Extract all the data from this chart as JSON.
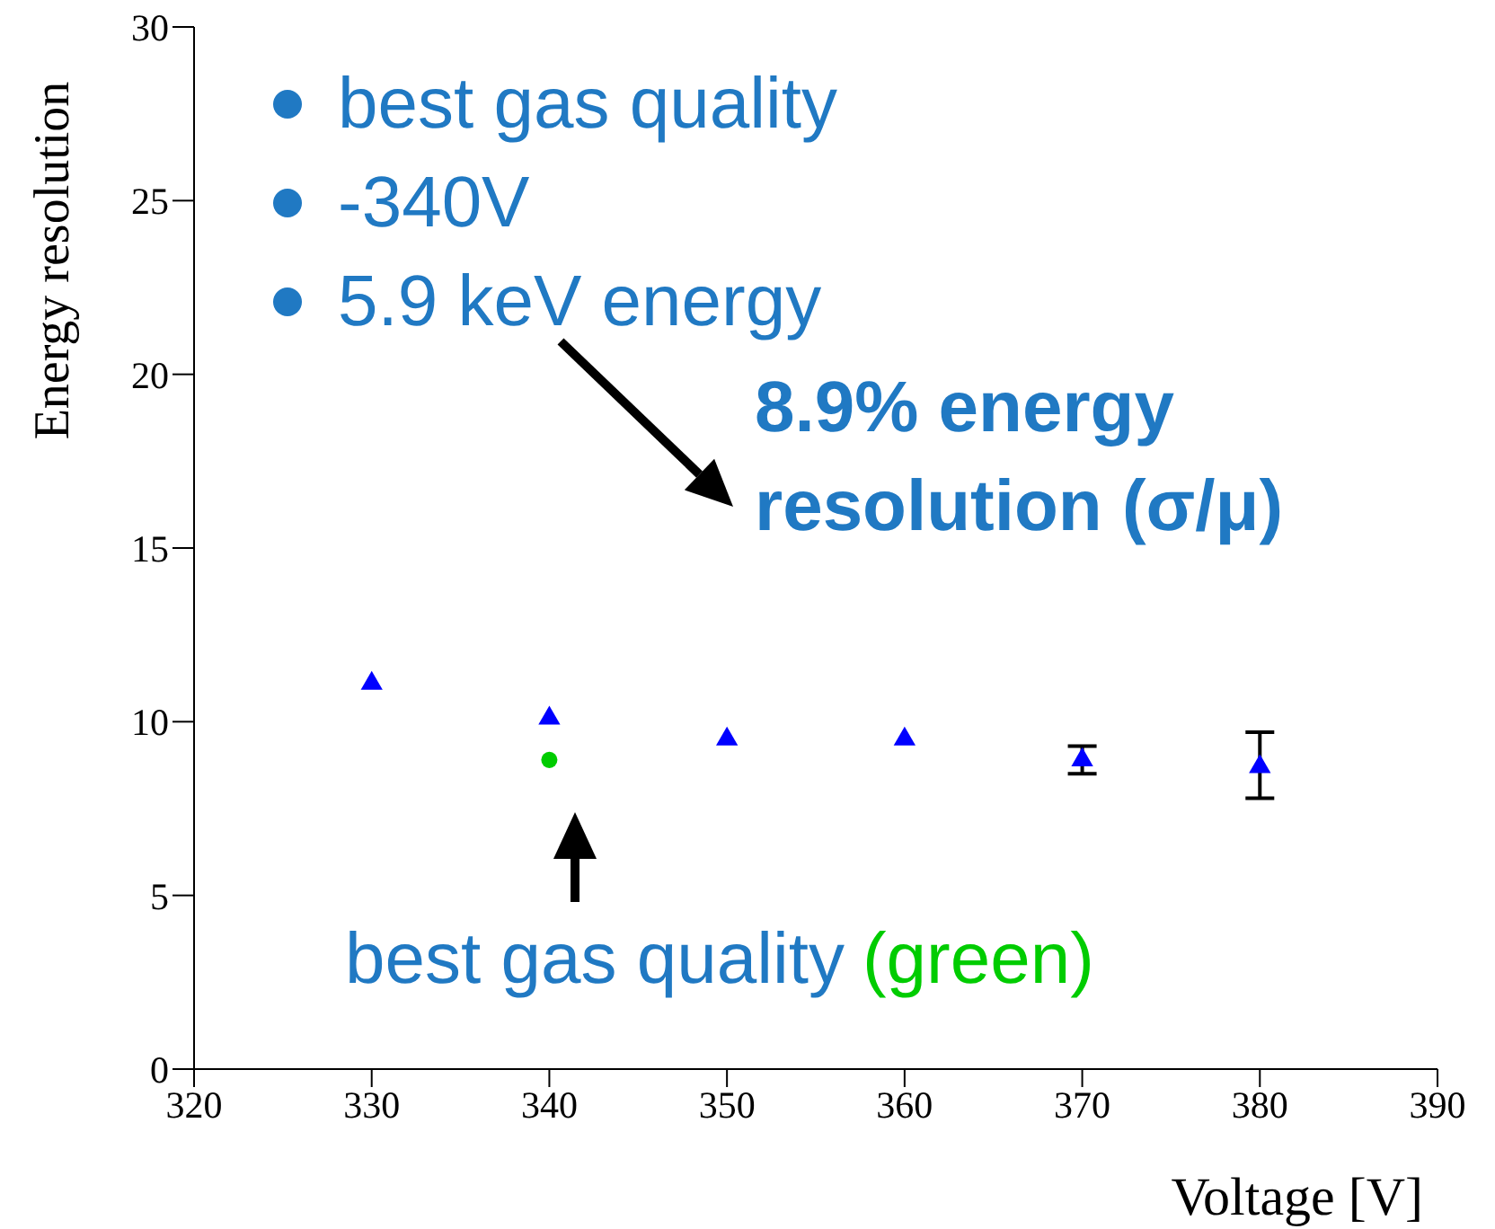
{
  "chart_data": {
    "type": "scatter",
    "xlabel": "Voltage [V]",
    "ylabel": "Energy resolution",
    "xlim": [
      320,
      390
    ],
    "xticks": [
      320,
      330,
      340,
      350,
      360,
      370,
      380,
      390
    ],
    "ylim": [
      0,
      30
    ],
    "yticks": [
      0,
      5,
      10,
      15,
      20,
      25,
      30
    ],
    "grid": false,
    "series": [
      {
        "color": "#0000ff",
        "marker": "triangle",
        "x": [
          330,
          340,
          350,
          360,
          370,
          380
        ],
        "values": [
          11.1,
          10.1,
          9.5,
          9.5,
          8.9,
          8.7
        ],
        "errors": [
          null,
          null,
          null,
          null,
          0.4,
          [
            7.8,
            9.7
          ]
        ]
      },
      {
        "color": "#00cc00",
        "marker": "circle",
        "x": [
          340
        ],
        "values": [
          8.9
        ]
      }
    ],
    "annotations": [
      "best gas quality",
      "-340V",
      "5.9 keV energy",
      "8.9% energy resolution (σ/μ)",
      "best gas quality",
      "(green)"
    ]
  }
}
